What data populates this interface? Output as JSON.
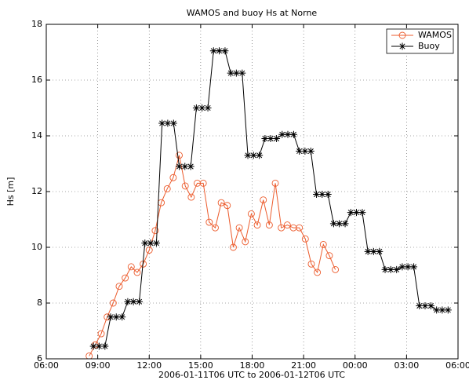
{
  "chart_data": {
    "type": "line",
    "title": "WAMOS and buoy Hs at Norne",
    "xlabel": "2006-01-11T06 UTC to 2006-01-12T06 UTC",
    "ylabel": "Hs [m]",
    "xlim": [
      6,
      30
    ],
    "xticks": [
      {
        "value": 6,
        "label": "06:00"
      },
      {
        "value": 9,
        "label": "09:00"
      },
      {
        "value": 12,
        "label": "12:00"
      },
      {
        "value": 15,
        "label": "15:00"
      },
      {
        "value": 18,
        "label": "18:00"
      },
      {
        "value": 21,
        "label": "21:00"
      },
      {
        "value": 24,
        "label": "00:00"
      },
      {
        "value": 27,
        "label": "03:00"
      },
      {
        "value": 30,
        "label": "06:00"
      }
    ],
    "ylim": [
      6,
      18
    ],
    "yticks": [
      6,
      8,
      10,
      12,
      14,
      16,
      18
    ],
    "grid": true,
    "legend": "upper right",
    "series": [
      {
        "name": "WAMOS",
        "color": "#ec5b2c",
        "marker": "circle",
        "x": [
          8.5,
          8.85,
          9.2,
          9.55,
          9.9,
          10.25,
          10.6,
          10.95,
          11.3,
          11.65,
          12,
          12.35,
          12.7,
          13.05,
          13.4,
          13.75,
          14.1,
          14.45,
          14.8,
          15.15,
          15.5,
          15.85,
          16.2,
          16.55,
          16.9,
          17.25,
          17.6,
          17.95,
          18.3,
          18.65,
          19,
          19.35,
          19.7,
          20.05,
          20.4,
          20.75,
          21.1,
          21.45,
          21.8,
          22.15,
          22.5,
          22.85
        ],
        "values": [
          6.1,
          6.5,
          6.9,
          7.5,
          8.0,
          8.6,
          8.9,
          9.3,
          9.1,
          9.4,
          9.9,
          10.6,
          11.6,
          12.1,
          12.5,
          13.3,
          12.2,
          11.8,
          12.3,
          12.3,
          10.9,
          10.7,
          11.6,
          11.5,
          10.0,
          10.7,
          10.2,
          11.2,
          10.8,
          11.7,
          10.8,
          12.3,
          10.7,
          10.8,
          10.7,
          10.7,
          10.3,
          9.4,
          9.1,
          10.1,
          9.7,
          9.2
        ]
      },
      {
        "name": "Buoy",
        "color": "#000000",
        "marker": "star",
        "x": [
          8.75,
          9.08,
          9.42,
          9.75,
          10.08,
          10.42,
          10.75,
          11.08,
          11.42,
          11.75,
          12.08,
          12.42,
          12.75,
          13.08,
          13.42,
          13.75,
          14.08,
          14.42,
          14.75,
          15.08,
          15.42,
          15.75,
          16.08,
          16.42,
          16.75,
          17.08,
          17.42,
          17.75,
          18.08,
          18.42,
          18.75,
          19.08,
          19.42,
          19.75,
          20.08,
          20.42,
          20.75,
          21.08,
          21.42,
          21.75,
          22.08,
          22.42,
          22.75,
          23.08,
          23.42,
          23.75,
          24.08,
          24.42,
          24.75,
          25.08,
          25.42,
          25.75,
          26.08,
          26.42,
          26.75,
          27.08,
          27.42,
          27.75,
          28.08,
          28.42,
          28.75,
          29.08,
          29.42
        ],
        "values": [
          6.45,
          6.45,
          6.45,
          7.5,
          7.5,
          7.5,
          8.05,
          8.05,
          8.05,
          10.15,
          10.15,
          10.15,
          14.45,
          14.45,
          14.45,
          12.9,
          12.9,
          12.9,
          15.0,
          15.0,
          15.0,
          17.05,
          17.05,
          17.05,
          16.25,
          16.25,
          16.25,
          13.3,
          13.3,
          13.3,
          13.9,
          13.9,
          13.9,
          14.05,
          14.05,
          14.05,
          13.45,
          13.45,
          13.45,
          11.9,
          11.9,
          11.9,
          10.85,
          10.85,
          10.85,
          11.25,
          11.25,
          11.25,
          9.85,
          9.85,
          9.85,
          9.2,
          9.2,
          9.2,
          9.3,
          9.3,
          9.3,
          7.9,
          7.9,
          7.9,
          7.75,
          7.75,
          7.75
        ]
      }
    ]
  }
}
